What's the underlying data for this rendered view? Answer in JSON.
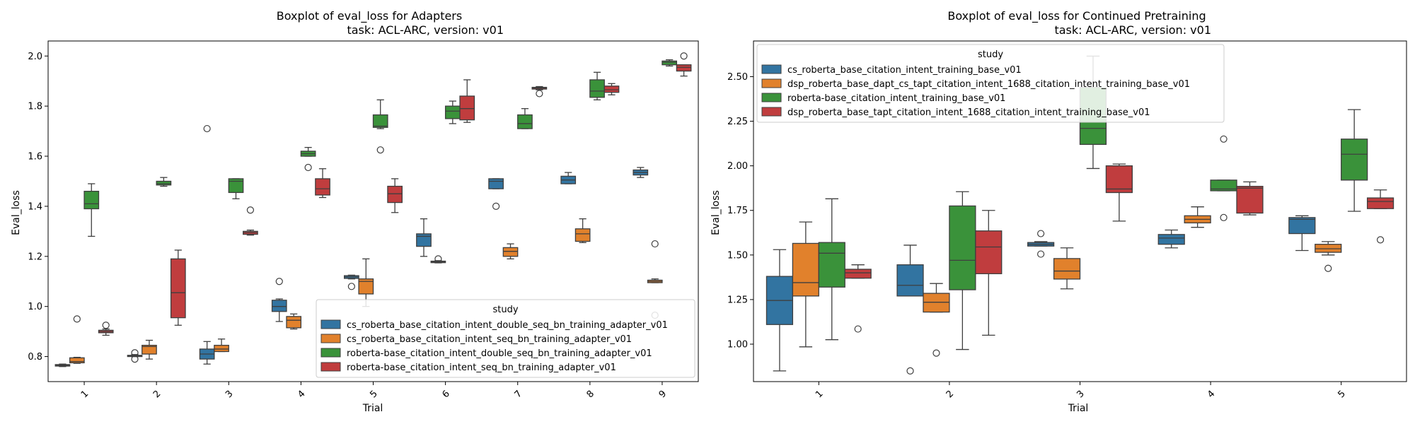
{
  "colors": {
    "blue": "#3274a1",
    "orange": "#e1812c",
    "green": "#3a923a",
    "red": "#c03d3e"
  },
  "chart_data": [
    {
      "type": "boxplot",
      "title_line1": "Boxplot of eval_loss for Adapters",
      "title_line2": "task: ACL-ARC, version: v01",
      "xlabel": "Trial",
      "ylabel": "Eval_loss",
      "categories": [
        "1",
        "2",
        "3",
        "4",
        "5",
        "6",
        "7",
        "8",
        "9"
      ],
      "ylim": [
        0.7,
        2.06
      ],
      "yticks": [
        "0.8",
        "1.0",
        "1.2",
        "1.4",
        "1.6",
        "1.8",
        "2.0"
      ],
      "ytick_values": [
        0.8,
        1.0,
        1.2,
        1.4,
        1.6,
        1.8,
        2.0
      ],
      "xtick_rotation": 45,
      "legend_title": "study",
      "legend_position": "lower right",
      "series": [
        {
          "name": "cs_roberta_base_citation_intent_double_seq_bn_training_adapter_v01",
          "color": "blue",
          "boxes": [
            {
              "whislo": 0.76,
              "q1": 0.762,
              "med": 0.765,
              "q3": 0.768,
              "whishi": 0.77,
              "fliers": []
            },
            {
              "whislo": 0.8,
              "q1": 0.8,
              "med": 0.802,
              "q3": 0.805,
              "whishi": 0.808,
              "fliers": [
                0.79,
                0.815
              ]
            },
            {
              "whislo": 0.77,
              "q1": 0.79,
              "med": 0.81,
              "q3": 0.83,
              "whishi": 0.86,
              "fliers": [
                1.71
              ]
            },
            {
              "whislo": 0.94,
              "q1": 0.98,
              "med": 1.0,
              "q3": 1.025,
              "whishi": 1.03,
              "fliers": [
                1.1
              ]
            },
            {
              "whislo": 1.11,
              "q1": 1.112,
              "med": 1.118,
              "q3": 1.123,
              "whishi": 1.125,
              "fliers": [
                1.08
              ]
            },
            {
              "whislo": 1.2,
              "q1": 1.24,
              "med": 1.28,
              "q3": 1.29,
              "whishi": 1.35,
              "fliers": []
            },
            {
              "whislo": 1.47,
              "q1": 1.47,
              "med": 1.5,
              "q3": 1.51,
              "whishi": 1.51,
              "fliers": [
                1.4
              ]
            },
            {
              "whislo": 1.49,
              "q1": 1.49,
              "med": 1.505,
              "q3": 1.52,
              "whishi": 1.535,
              "fliers": []
            },
            {
              "whislo": 1.515,
              "q1": 1.525,
              "med": 1.535,
              "q3": 1.545,
              "whishi": 1.555,
              "fliers": []
            }
          ]
        },
        {
          "name": "cs_roberta_base_citation_intent_seq_bn_training_adapter_v01",
          "color": "orange",
          "boxes": [
            {
              "whislo": 0.773,
              "q1": 0.775,
              "med": 0.78,
              "q3": 0.795,
              "whishi": 0.797,
              "fliers": [
                0.95
              ]
            },
            {
              "whislo": 0.79,
              "q1": 0.81,
              "med": 0.84,
              "q3": 0.845,
              "whishi": 0.865,
              "fliers": []
            },
            {
              "whislo": 0.82,
              "q1": 0.82,
              "med": 0.83,
              "q3": 0.845,
              "whishi": 0.87,
              "fliers": []
            },
            {
              "whislo": 0.91,
              "q1": 0.915,
              "med": 0.945,
              "q3": 0.96,
              "whishi": 0.97,
              "fliers": []
            },
            {
              "whislo": 1.0,
              "q1": 1.05,
              "med": 1.1,
              "q3": 1.11,
              "whishi": 1.19,
              "fliers": []
            },
            {
              "whislo": 1.174,
              "q1": 1.175,
              "med": 1.178,
              "q3": 1.181,
              "whishi": 1.183,
              "fliers": [
                1.19
              ]
            },
            {
              "whislo": 1.19,
              "q1": 1.2,
              "med": 1.22,
              "q3": 1.235,
              "whishi": 1.25,
              "fliers": []
            },
            {
              "whislo": 1.255,
              "q1": 1.26,
              "med": 1.29,
              "q3": 1.31,
              "whishi": 1.35,
              "fliers": []
            },
            {
              "whislo": 1.095,
              "q1": 1.095,
              "med": 1.1,
              "q3": 1.105,
              "whishi": 1.11,
              "fliers": [
                1.25,
                0.965
              ]
            }
          ]
        },
        {
          "name": "roberta-base_citation_intent_double_seq_bn_training_adapter_v01",
          "color": "green",
          "boxes": [
            {
              "whislo": 1.28,
              "q1": 1.39,
              "med": 1.41,
              "q3": 1.46,
              "whishi": 1.49,
              "fliers": []
            },
            {
              "whislo": 1.48,
              "q1": 1.485,
              "med": 1.49,
              "q3": 1.5,
              "whishi": 1.515,
              "fliers": []
            },
            {
              "whislo": 1.43,
              "q1": 1.455,
              "med": 1.5,
              "q3": 1.51,
              "whishi": 1.51,
              "fliers": []
            },
            {
              "whislo": 1.6,
              "q1": 1.6,
              "med": 1.61,
              "q3": 1.62,
              "whishi": 1.635,
              "fliers": [
                1.555
              ]
            },
            {
              "whislo": 1.71,
              "q1": 1.715,
              "med": 1.72,
              "q3": 1.765,
              "whishi": 1.825,
              "fliers": [
                1.625
              ]
            },
            {
              "whislo": 1.73,
              "q1": 1.75,
              "med": 1.78,
              "q3": 1.8,
              "whishi": 1.82,
              "fliers": []
            },
            {
              "whislo": 1.71,
              "q1": 1.71,
              "med": 1.73,
              "q3": 1.765,
              "whishi": 1.79,
              "fliers": []
            },
            {
              "whislo": 1.825,
              "q1": 1.835,
              "med": 1.86,
              "q3": 1.905,
              "whishi": 1.935,
              "fliers": []
            },
            {
              "whislo": 1.96,
              "q1": 1.965,
              "med": 1.975,
              "q3": 1.98,
              "whishi": 1.985,
              "fliers": []
            }
          ]
        },
        {
          "name": "roberta-base_citation_intent_seq_bn_training_adapter_v01",
          "color": "red",
          "boxes": [
            {
              "whislo": 0.885,
              "q1": 0.895,
              "med": 0.9,
              "q3": 0.905,
              "whishi": 0.91,
              "fliers": [
                0.925
              ]
            },
            {
              "whislo": 0.925,
              "q1": 0.955,
              "med": 1.055,
              "q3": 1.19,
              "whishi": 1.225,
              "fliers": []
            },
            {
              "whislo": 1.285,
              "q1": 1.288,
              "med": 1.295,
              "q3": 1.3,
              "whishi": 1.305,
              "fliers": [
                1.385
              ]
            },
            {
              "whislo": 1.435,
              "q1": 1.445,
              "med": 1.47,
              "q3": 1.51,
              "whishi": 1.55,
              "fliers": []
            },
            {
              "whislo": 1.375,
              "q1": 1.415,
              "med": 1.45,
              "q3": 1.48,
              "whishi": 1.51,
              "fliers": []
            },
            {
              "whislo": 1.735,
              "q1": 1.745,
              "med": 1.79,
              "q3": 1.84,
              "whishi": 1.905,
              "fliers": []
            },
            {
              "whislo": 1.865,
              "q1": 1.868,
              "med": 1.872,
              "q3": 1.875,
              "whishi": 1.878,
              "fliers": [
                1.85
              ]
            },
            {
              "whislo": 1.845,
              "q1": 1.855,
              "med": 1.865,
              "q3": 1.88,
              "whishi": 1.89,
              "fliers": []
            },
            {
              "whislo": 1.92,
              "q1": 1.94,
              "med": 1.955,
              "q3": 1.965,
              "whishi": 1.965,
              "fliers": [
                2.0
              ]
            }
          ]
        }
      ]
    },
    {
      "type": "boxplot",
      "title_line1": "Boxplot of eval_loss for Continued Pretraining",
      "title_line2": "task: ACL-ARC, version: v01",
      "xlabel": "Trial",
      "ylabel": "Eval_loss",
      "categories": [
        "1",
        "2",
        "3",
        "4",
        "5"
      ],
      "ylim": [
        0.79,
        2.7
      ],
      "yticks": [
        "1.00",
        "1.25",
        "1.50",
        "1.75",
        "2.00",
        "2.25",
        "2.50"
      ],
      "ytick_values": [
        1.0,
        1.25,
        1.5,
        1.75,
        2.0,
        2.25,
        2.5
      ],
      "xtick_rotation": 45,
      "legend_title": "study",
      "legend_position": "upper left",
      "series": [
        {
          "name": "cs_roberta_base_citation_intent_training_base_v01",
          "color": "blue",
          "boxes": [
            {
              "whislo": 0.85,
              "q1": 1.11,
              "med": 1.245,
              "q3": 1.38,
              "whishi": 1.53,
              "fliers": []
            },
            {
              "whislo": 1.27,
              "q1": 1.27,
              "med": 1.33,
              "q3": 1.445,
              "whishi": 1.555,
              "fliers": [
                0.85
              ]
            },
            {
              "whislo": 1.55,
              "q1": 1.55,
              "med": 1.56,
              "q3": 1.57,
              "whishi": 1.575,
              "fliers": [
                1.62,
                1.505
              ]
            },
            {
              "whislo": 1.54,
              "q1": 1.56,
              "med": 1.595,
              "q3": 1.615,
              "whishi": 1.64,
              "fliers": []
            },
            {
              "whislo": 1.525,
              "q1": 1.62,
              "med": 1.7,
              "q3": 1.71,
              "whishi": 1.72,
              "fliers": []
            }
          ]
        },
        {
          "name": "dsp_roberta_base_dapt_cs_tapt_citation_intent_1688_citation_intent_training_base_v01",
          "color": "orange",
          "boxes": [
            {
              "whislo": 0.985,
              "q1": 1.27,
              "med": 1.345,
              "q3": 1.565,
              "whishi": 1.685,
              "fliers": []
            },
            {
              "whislo": 1.18,
              "q1": 1.18,
              "med": 1.235,
              "q3": 1.285,
              "whishi": 1.34,
              "fliers": [
                0.95
              ]
            },
            {
              "whislo": 1.31,
              "q1": 1.365,
              "med": 1.41,
              "q3": 1.48,
              "whishi": 1.54,
              "fliers": []
            },
            {
              "whislo": 1.655,
              "q1": 1.68,
              "med": 1.7,
              "q3": 1.72,
              "whishi": 1.77,
              "fliers": []
            },
            {
              "whislo": 1.5,
              "q1": 1.515,
              "med": 1.535,
              "q3": 1.56,
              "whishi": 1.575,
              "fliers": [
                1.425
              ]
            }
          ]
        },
        {
          "name": "roberta-base_citation_intent_training_base_v01",
          "color": "green",
          "boxes": [
            {
              "whislo": 1.025,
              "q1": 1.32,
              "med": 1.51,
              "q3": 1.57,
              "whishi": 1.815,
              "fliers": []
            },
            {
              "whislo": 0.97,
              "q1": 1.305,
              "med": 1.47,
              "q3": 1.775,
              "whishi": 1.855,
              "fliers": []
            },
            {
              "whislo": 1.985,
              "q1": 2.12,
              "med": 2.21,
              "q3": 2.44,
              "whishi": 2.615,
              "fliers": []
            },
            {
              "whislo": 1.86,
              "q1": 1.86,
              "med": 1.87,
              "q3": 1.92,
              "whishi": 1.92,
              "fliers": [
                2.15,
                1.71
              ]
            },
            {
              "whislo": 1.745,
              "q1": 1.92,
              "med": 2.065,
              "q3": 2.15,
              "whishi": 2.315,
              "fliers": []
            }
          ]
        },
        {
          "name": "dsp_roberta_base_tapt_citation_intent_1688_citation_intent_training_base_v01",
          "color": "red",
          "boxes": [
            {
              "whislo": 1.37,
              "q1": 1.37,
              "med": 1.4,
              "q3": 1.42,
              "whishi": 1.445,
              "fliers": [
                1.085
              ]
            },
            {
              "whislo": 1.05,
              "q1": 1.395,
              "med": 1.545,
              "q3": 1.635,
              "whishi": 1.75,
              "fliers": []
            },
            {
              "whislo": 1.69,
              "q1": 1.85,
              "med": 1.87,
              "q3": 2.0,
              "whishi": 2.01,
              "fliers": []
            },
            {
              "whislo": 1.725,
              "q1": 1.735,
              "med": 1.875,
              "q3": 1.885,
              "whishi": 1.91,
              "fliers": []
            },
            {
              "whislo": 1.76,
              "q1": 1.76,
              "med": 1.8,
              "q3": 1.82,
              "whishi": 1.865,
              "fliers": [
                1.585
              ]
            }
          ]
        }
      ]
    }
  ]
}
